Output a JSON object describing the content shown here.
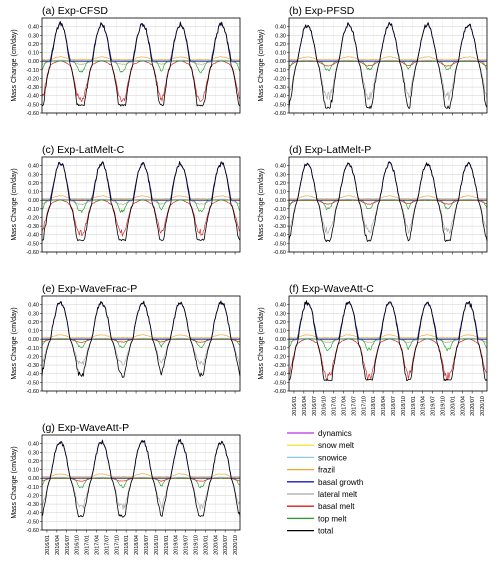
{
  "chart_data": {
    "type": "line",
    "ylabel": "Mass Change (cm/day)",
    "ylim": [
      -0.6,
      0.5
    ],
    "y_ticks": [
      "0.40",
      "0.30",
      "0.20",
      "0.10",
      "0.00",
      "-0.10",
      "-0.20",
      "-0.30",
      "-0.40",
      "-0.50",
      "-0.60"
    ],
    "x_ticks": [
      "2016/01",
      "2016/04",
      "2016/07",
      "2016/10",
      "2017/01",
      "2017/04",
      "2017/07",
      "2017/10",
      "2018/01",
      "2018/04",
      "2018/07",
      "2018/10",
      "2019/01",
      "2019/04",
      "2019/07",
      "2019/10",
      "2020/01",
      "2020/04",
      "2020/07",
      "2020/10"
    ],
    "grid": true,
    "legend": {
      "placement": "bottom-right",
      "entries": [
        {
          "name": "dynamics",
          "color": "#b832e0"
        },
        {
          "name": "snow melt",
          "color": "#f0e646"
        },
        {
          "name": "snowice",
          "color": "#8ec8ea"
        },
        {
          "name": "frazil",
          "color": "#f4a52e"
        },
        {
          "name": "basal growth",
          "color": "#1a1ab5"
        },
        {
          "name": "lateral melt",
          "color": "#a8a8a8"
        },
        {
          "name": "basal melt",
          "color": "#dd1c1c"
        },
        {
          "name": "top melt",
          "color": "#25a025"
        },
        {
          "name": "total",
          "color": "#000000"
        }
      ]
    },
    "approx_seasonal_extremes": {
      "basal_growth_peak_austral_winter": 0.42,
      "frazil_peak": 0.05,
      "total_minimum_austral_summer": -0.45
    },
    "panels": [
      {
        "label": "(a) Exp-CFSD",
        "basal_melt_min": -0.4,
        "lateral_melt_min": -0.03,
        "top_melt_min": -0.12,
        "total_min": -0.52
      },
      {
        "label": "(b) Exp-PFSD",
        "basal_melt_min": -0.05,
        "lateral_melt_min": -0.4,
        "top_melt_min": -0.1,
        "total_min": -0.55
      },
      {
        "label": "(c) Exp-LatMelt-C",
        "basal_melt_min": -0.33,
        "lateral_melt_min": -0.04,
        "top_melt_min": -0.13,
        "total_min": -0.47
      },
      {
        "label": "(d) Exp-LatMelt-P",
        "basal_melt_min": -0.04,
        "lateral_melt_min": -0.35,
        "top_melt_min": -0.1,
        "total_min": -0.48
      },
      {
        "label": "(e) Exp-WaveFrac-P",
        "basal_melt_min": -0.03,
        "lateral_melt_min": -0.28,
        "top_melt_min": -0.09,
        "total_min": -0.45
      },
      {
        "label": "(f) Exp-WaveAtt-C",
        "basal_melt_min": -0.38,
        "lateral_melt_min": -0.03,
        "top_melt_min": -0.12,
        "total_min": -0.48
      },
      {
        "label": "(g) Exp-WaveAtt-P",
        "basal_melt_min": -0.03,
        "lateral_melt_min": -0.33,
        "top_melt_min": -0.1,
        "total_min": -0.45
      }
    ]
  }
}
